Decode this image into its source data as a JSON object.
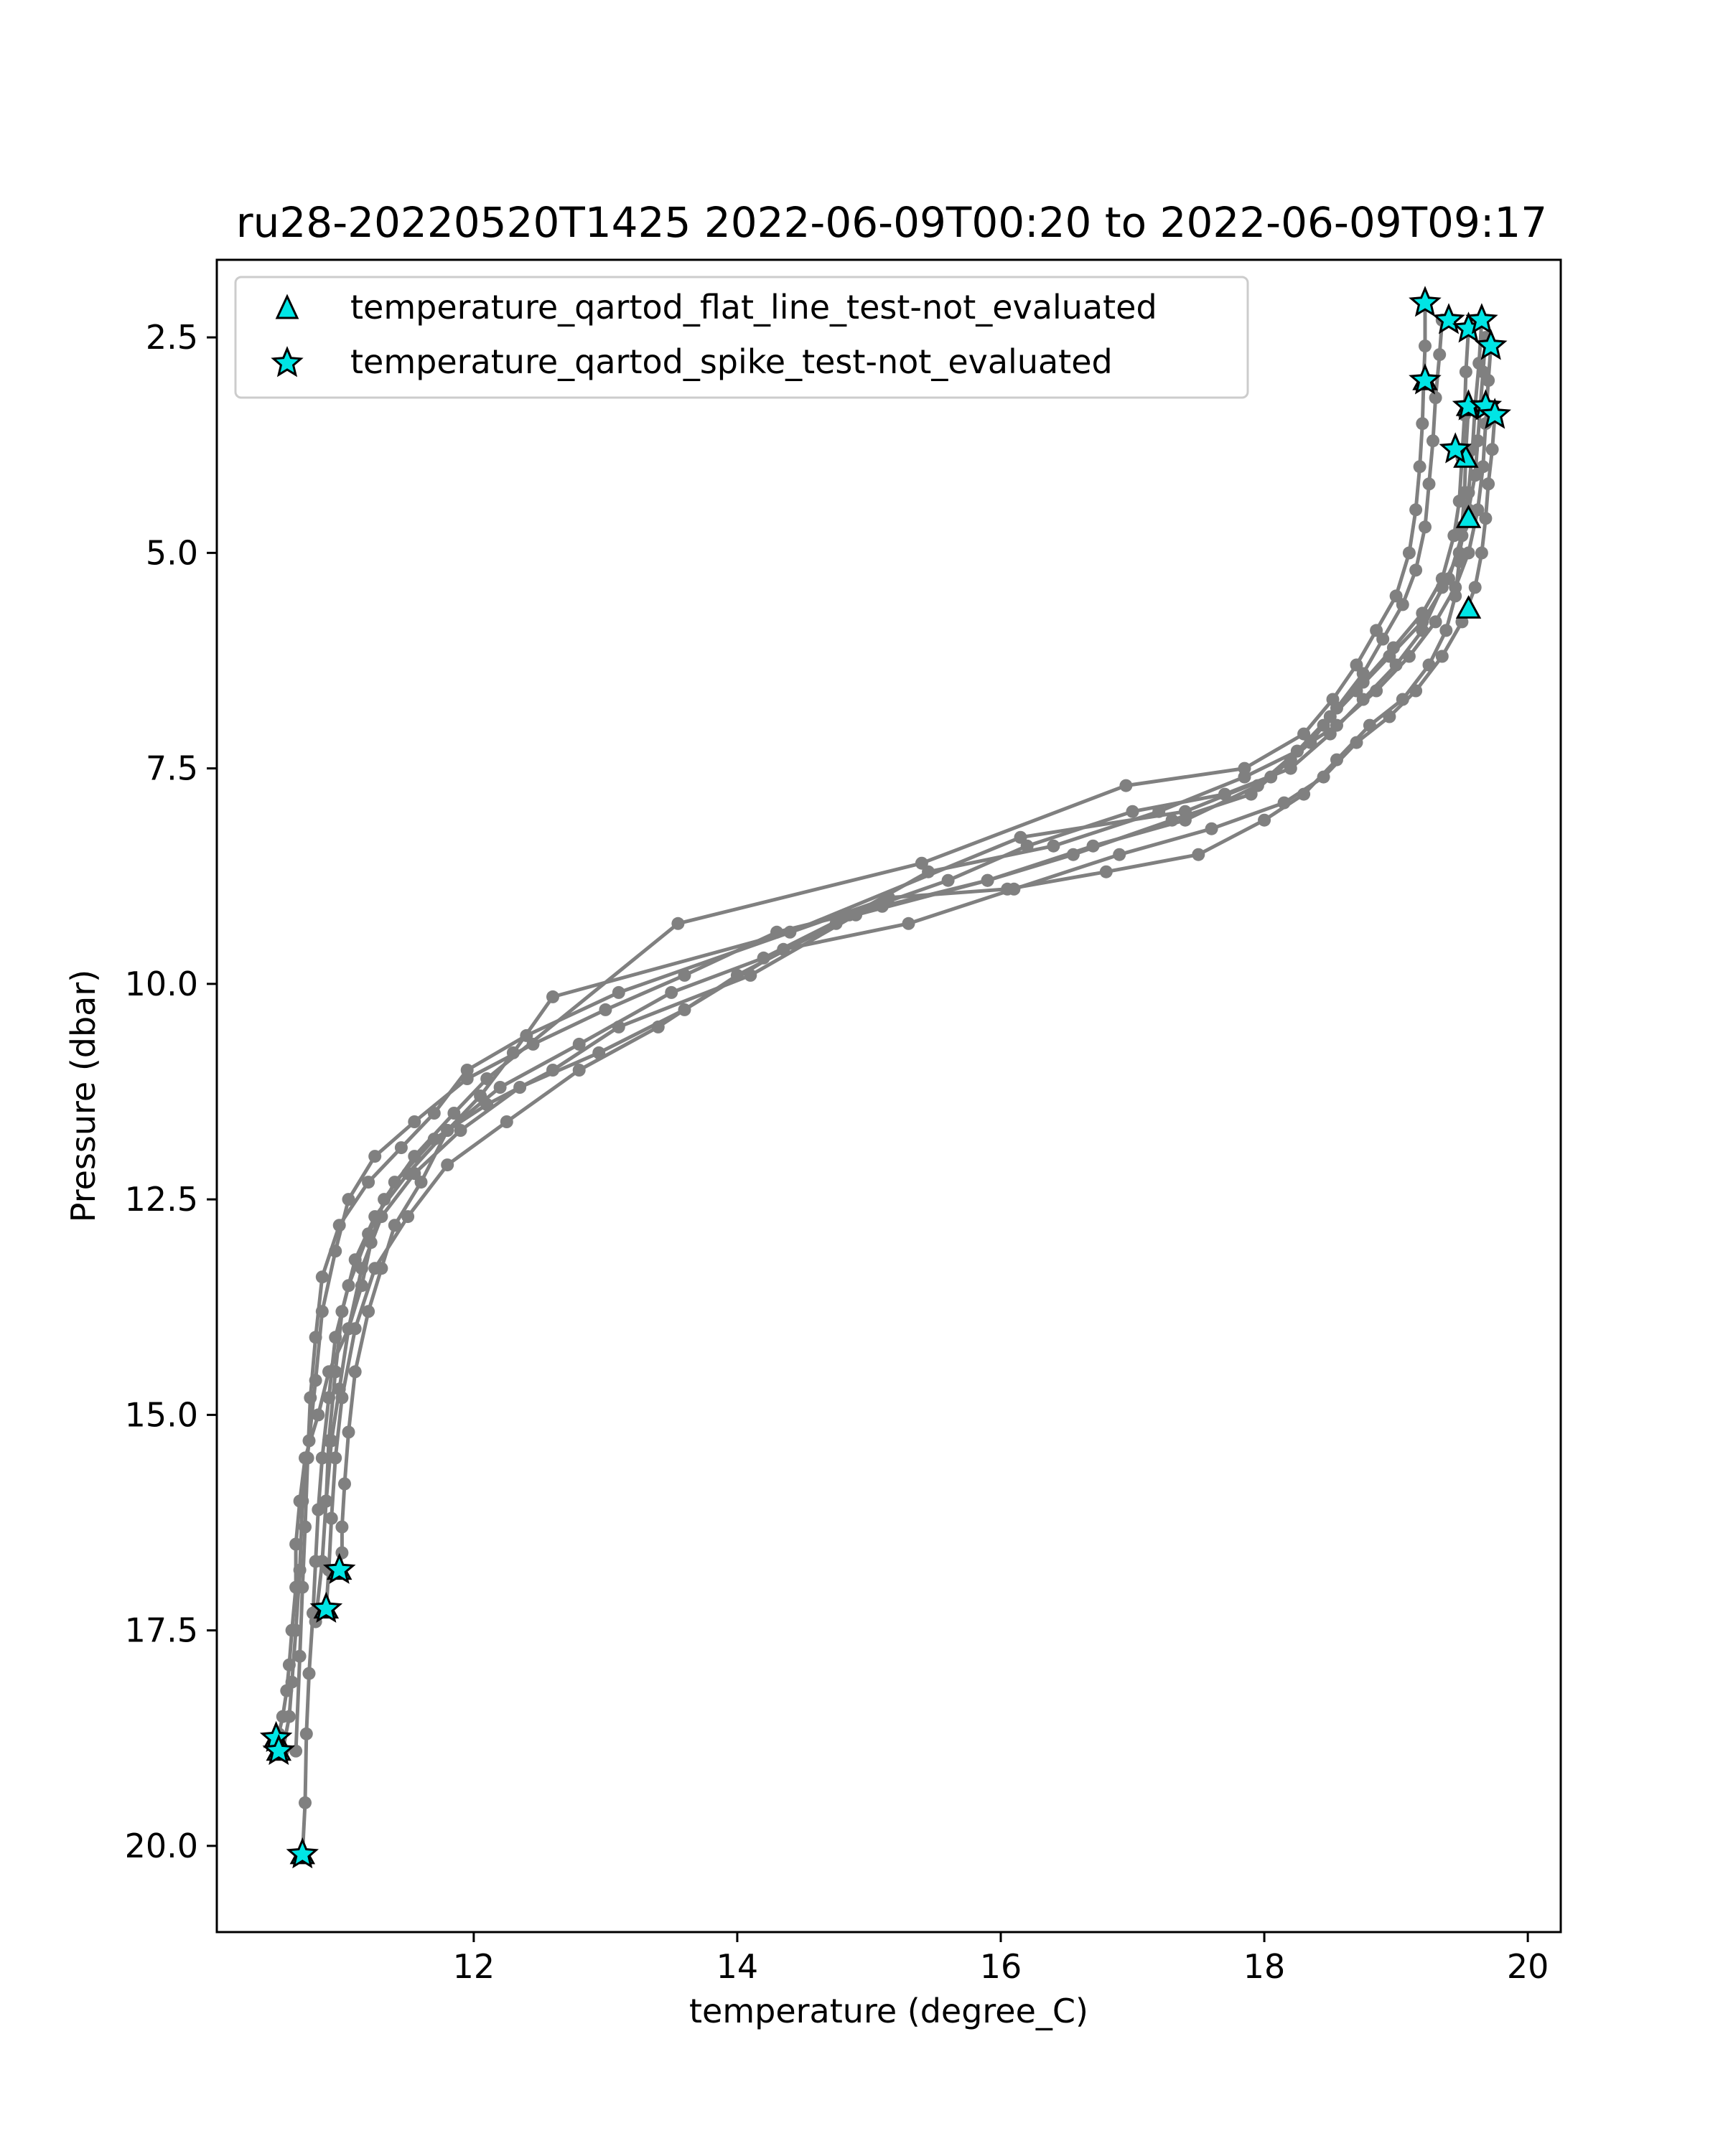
{
  "chart_data": {
    "type": "scatter",
    "title": "ru28-20220520T1425 2022-06-09T00:20 to 2022-06-09T09:17",
    "xlabel": "temperature (degree_C)",
    "ylabel": "Pressure (dbar)",
    "xlim": [
      10.05,
      20.25
    ],
    "ylim": [
      21.0,
      1.6
    ],
    "y_inverted": true,
    "xticks": [
      12,
      14,
      16,
      18,
      20
    ],
    "xtick_labels": [
      "12",
      "14",
      "16",
      "18",
      "20"
    ],
    "yticks": [
      2.5,
      5.0,
      7.5,
      10.0,
      12.5,
      15.0,
      17.5,
      20.0
    ],
    "ytick_labels": [
      "2.5",
      "5.0",
      "7.5",
      "10.0",
      "12.5",
      "15.0",
      "17.5",
      "20.0"
    ],
    "grid": false,
    "legend_position": "upper-left",
    "colors": {
      "profile_line": "#808080",
      "marker_fill": "#00e5e5",
      "marker_edge": "#000000"
    },
    "profiles": [
      {
        "x": [
          19.22,
          19.22,
          19.21,
          19.2,
          19.18,
          19.15,
          19.1,
          19.0,
          18.85,
          18.7,
          18.52,
          18.3,
          17.85,
          16.95,
          15.4,
          13.55,
          12.1,
          11.85,
          11.55,
          11.32,
          11.22,
          11.15,
          11.05,
          10.9,
          10.82,
          10.72,
          10.68,
          10.65,
          10.65,
          10.62,
          10.6,
          10.58,
          10.55,
          10.52,
          10.5
        ],
        "y": [
          2.1,
          2.6,
          3.0,
          3.5,
          4.0,
          4.5,
          5.0,
          5.5,
          5.9,
          6.3,
          6.7,
          7.1,
          7.5,
          7.7,
          8.6,
          9.3,
          11.1,
          11.5,
          12.0,
          12.5,
          13.0,
          13.5,
          14.0,
          14.5,
          15.0,
          15.5,
          16.0,
          16.5,
          17.0,
          17.5,
          17.9,
          18.2,
          18.5,
          18.7,
          18.75
        ]
      },
      {
        "x": [
          19.35,
          19.33,
          19.3,
          19.28,
          19.25,
          19.22,
          19.15,
          19.05,
          18.9,
          18.75,
          18.55,
          18.35,
          18.05,
          17.4,
          16.15,
          14.4,
          12.6,
          12.3,
          12.05,
          11.8,
          11.6,
          11.4,
          11.3,
          11.2,
          11.1,
          11.05,
          11.02,
          11.0,
          11.0,
          10.98
        ],
        "y": [
          2.3,
          2.7,
          3.2,
          3.7,
          4.2,
          4.7,
          5.2,
          5.6,
          6.0,
          6.4,
          6.8,
          7.2,
          7.6,
          8.0,
          8.3,
          9.4,
          10.15,
          10.8,
          11.3,
          11.7,
          12.3,
          12.8,
          13.3,
          13.8,
          14.5,
          15.2,
          15.8,
          16.3,
          16.6,
          16.8
        ]
      },
      {
        "x": [
          19.55,
          19.53,
          19.52,
          19.5,
          19.48,
          19.45,
          19.38,
          19.25,
          19.05,
          18.8,
          18.55,
          18.3,
          18.0,
          17.5,
          16.8,
          16.05,
          15.15,
          13.1,
          12.4,
          11.95,
          11.7,
          11.45,
          11.2,
          10.98,
          10.85,
          10.8,
          10.76,
          10.74,
          10.72,
          10.7,
          10.68,
          10.65
        ],
        "y": [
          3.3,
          3.8,
          4.3,
          4.7,
          5.1,
          5.5,
          5.9,
          6.3,
          6.7,
          7.0,
          7.4,
          7.8,
          8.1,
          8.5,
          8.7,
          8.9,
          9.0,
          10.1,
          10.6,
          11.0,
          11.5,
          11.9,
          12.3,
          12.8,
          13.4,
          14.1,
          14.8,
          15.5,
          16.3,
          17.0,
          17.8,
          18.9
        ]
      },
      {
        "x": [
          19.65,
          19.63,
          19.6,
          19.58,
          19.55,
          19.5,
          19.4,
          19.2,
          18.95,
          18.7,
          18.45,
          18.2,
          17.9,
          17.3,
          16.55,
          15.9,
          14.9,
          14.1,
          13.1,
          12.6,
          12.1,
          11.7,
          11.4,
          11.2,
          11.05,
          10.95,
          10.9,
          10.85,
          10.82,
          10.8,
          10.78,
          10.75,
          10.73,
          10.72,
          10.7
        ],
        "y": [
          2.3,
          2.8,
          3.3,
          3.8,
          4.3,
          4.8,
          5.3,
          5.8,
          6.2,
          6.6,
          7.0,
          7.4,
          7.8,
          8.1,
          8.5,
          8.8,
          9.2,
          9.9,
          10.5,
          11.0,
          11.4,
          11.8,
          12.3,
          12.9,
          13.5,
          14.1,
          14.8,
          15.5,
          16.1,
          16.7,
          17.3,
          18.0,
          18.7,
          19.5,
          20.1
        ]
      },
      {
        "x": [
          19.72,
          19.7,
          19.68,
          19.66,
          19.62,
          19.55,
          19.45,
          19.3,
          19.1,
          18.85,
          18.55,
          18.25,
          17.85,
          17.2,
          16.4,
          15.45,
          14.75,
          14.0,
          13.4,
          12.8,
          12.25,
          11.8,
          11.5,
          11.25,
          11.1,
          11.0,
          10.95,
          10.92,
          10.9,
          10.88
        ],
        "y": [
          2.6,
          3.0,
          3.5,
          4.0,
          4.5,
          5.0,
          5.4,
          5.8,
          6.2,
          6.6,
          7.0,
          7.3,
          7.6,
          8.0,
          8.4,
          8.7,
          9.3,
          9.9,
          10.5,
          11.0,
          11.6,
          12.1,
          12.7,
          13.3,
          14.0,
          14.8,
          15.5,
          16.2,
          16.8,
          17.25
        ]
      },
      {
        "x": [
          19.75,
          19.73,
          19.7,
          19.68,
          19.65,
          19.6,
          19.5,
          19.35,
          19.15,
          18.95,
          18.7,
          18.45,
          18.15,
          17.6,
          16.9,
          16.1,
          15.3,
          14.35,
          13.6,
          12.95,
          12.35,
          11.9,
          11.55,
          11.3,
          11.15,
          11.05,
          10.98,
          10.92,
          10.88,
          10.85,
          10.8
        ],
        "y": [
          3.4,
          3.8,
          4.2,
          4.6,
          5.0,
          5.4,
          5.8,
          6.2,
          6.6,
          6.9,
          7.2,
          7.6,
          7.9,
          8.2,
          8.5,
          8.9,
          9.3,
          9.6,
          10.3,
          10.8,
          11.2,
          11.7,
          12.2,
          12.7,
          13.3,
          14.0,
          14.7,
          15.3,
          16.0,
          16.7,
          17.4
        ]
      },
      {
        "x": [
          19.68,
          19.66,
          19.64,
          19.62,
          19.6,
          19.55,
          19.48,
          19.35,
          19.2,
          19.0,
          18.75,
          18.5,
          18.2,
          17.7,
          17.0,
          16.2,
          15.6,
          14.85,
          14.2,
          13.5,
          12.8,
          12.2,
          11.8,
          11.5,
          11.25,
          11.1,
          11.0,
          10.95,
          10.9,
          10.88
        ],
        "y": [
          2.5,
          2.9,
          3.3,
          3.7,
          4.1,
          4.5,
          5.0,
          5.4,
          5.9,
          6.3,
          6.7,
          7.1,
          7.5,
          7.8,
          8.0,
          8.4,
          8.8,
          9.2,
          9.7,
          10.1,
          10.7,
          11.2,
          11.7,
          12.2,
          12.7,
          13.2,
          13.8,
          14.5,
          15.3,
          16.0
        ]
      },
      {
        "x": [
          19.55,
          19.53,
          19.52,
          19.5,
          19.48,
          19.44,
          19.35,
          19.2,
          18.98,
          18.75,
          18.5,
          18.25,
          17.95,
          17.4,
          16.7,
          15.9,
          15.1,
          14.3,
          13.6,
          13.0,
          12.45,
          11.95,
          11.55,
          11.25,
          11.05,
          10.95,
          10.85,
          10.8,
          10.75,
          10.7,
          10.68,
          10.65,
          10.62,
          10.6,
          10.55
        ],
        "y": [
          2.4,
          2.9,
          3.4,
          3.9,
          4.4,
          4.8,
          5.3,
          5.7,
          6.1,
          6.5,
          6.9,
          7.3,
          7.7,
          8.1,
          8.4,
          8.8,
          9.1,
          9.4,
          9.9,
          10.3,
          10.7,
          11.1,
          11.6,
          12.0,
          12.5,
          13.1,
          13.8,
          14.6,
          15.3,
          16.0,
          16.8,
          17.5,
          18.1,
          18.5,
          18.9
        ]
      }
    ],
    "legend": [
      {
        "marker": "triangle",
        "label": "temperature_qartod_flat_line_test-not_evaluated"
      },
      {
        "marker": "star",
        "label": "temperature_qartod_spike_test-not_evaluated"
      }
    ],
    "flagged": [
      {
        "name": "temperature_qartod_flat_line_test-not_evaluated",
        "marker": "triangle",
        "x": [
          19.22,
          19.55,
          19.53,
          19.55,
          19.55,
          10.98,
          10.88,
          10.5,
          10.52,
          10.7
        ],
        "y": [
          3.0,
          3.3,
          3.9,
          4.6,
          5.65,
          16.8,
          17.25,
          18.75,
          18.9,
          20.1
        ]
      },
      {
        "name": "temperature_qartod_spike_test-not_evaluated",
        "marker": "star",
        "x": [
          19.22,
          19.4,
          19.55,
          19.65,
          19.72,
          19.22,
          19.55,
          19.68,
          19.75,
          19.45,
          10.98,
          10.88,
          10.5,
          10.52,
          10.7
        ],
        "y": [
          2.1,
          2.3,
          2.4,
          2.3,
          2.6,
          3.0,
          3.3,
          3.3,
          3.4,
          3.8,
          16.8,
          17.25,
          18.75,
          18.9,
          20.1
        ]
      }
    ]
  }
}
